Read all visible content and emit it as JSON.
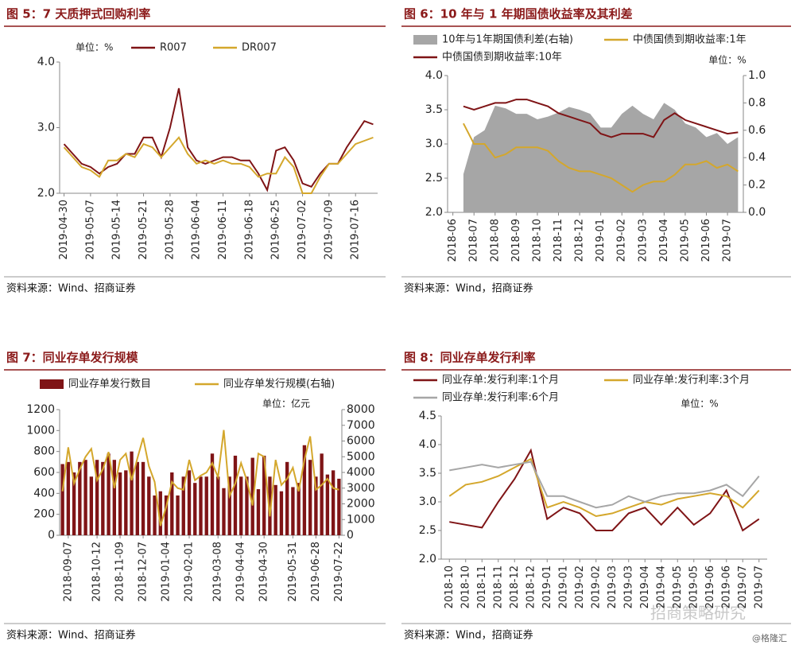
{
  "chart_data": [
    {
      "type": "line",
      "title": "图 5：7 天质押式回购利率",
      "unit": "单位：%",
      "source": "资料来源：Wind、招商证券",
      "categories": [
        "2019-04-30",
        null,
        null,
        "2019-05-07",
        null,
        null,
        "2019-05-14",
        null,
        null,
        "2019-05-21",
        null,
        null,
        "2019-05-28",
        null,
        null,
        "2019-06-04",
        null,
        null,
        "2019-06-11",
        null,
        null,
        "2019-06-18",
        null,
        null,
        "2019-06-25",
        null,
        null,
        "2019-07-02",
        null,
        null,
        "2019-07-09",
        null,
        null,
        "2019-07-16",
        null,
        null
      ],
      "ylim": [
        2.0,
        4.0
      ],
      "yticks": [
        {
          "value": 2,
          "label": "2.0"
        },
        {
          "value": 3,
          "label": "3.0"
        },
        {
          "value": 4,
          "label": "4.0"
        }
      ],
      "series": [
        {
          "name": "R007",
          "color": "#7f1416",
          "values": [
            2.75,
            2.6,
            2.45,
            2.4,
            2.3,
            2.4,
            2.45,
            2.6,
            2.6,
            2.85,
            2.85,
            2.55,
            3.0,
            3.6,
            2.7,
            2.5,
            2.45,
            2.5,
            2.55,
            2.55,
            2.5,
            2.5,
            2.3,
            2.05,
            2.65,
            2.7,
            2.5,
            2.15,
            2.1,
            2.3,
            2.45,
            2.45,
            2.7,
            2.9,
            3.1,
            3.05
          ]
        },
        {
          "name": "DR007",
          "color": "#d4a72c",
          "values": [
            2.7,
            2.55,
            2.4,
            2.35,
            2.25,
            2.5,
            2.5,
            2.6,
            2.55,
            2.75,
            2.7,
            2.55,
            2.7,
            2.85,
            2.6,
            2.45,
            2.5,
            2.45,
            2.5,
            2.45,
            2.45,
            2.4,
            2.25,
            2.3,
            2.3,
            2.55,
            2.4,
            2.0,
            2.0,
            2.25,
            2.45,
            2.45,
            2.6,
            2.75,
            2.8,
            2.85
          ]
        }
      ]
    },
    {
      "type": "line",
      "title": "图 6：10 年与 1 年期国债收益率及其利差",
      "unit": "单位：%",
      "source": "资料来源：Wind，招商证券",
      "categories": [
        "2018-06",
        null,
        "2018-07",
        null,
        "2018-08",
        null,
        "2018-09",
        null,
        "2018-10",
        null,
        "2018-11",
        null,
        "2018-12",
        null,
        "2019-01",
        null,
        "2019-02",
        null,
        "2019-03",
        null,
        "2019-04",
        null,
        "2019-05",
        null,
        "2019-06",
        null,
        "2019-07",
        null
      ],
      "ylim": [
        2.0,
        4.0
      ],
      "yticks": [
        {
          "value": 2,
          "label": "2.0"
        },
        2.5,
        {
          "value": 3,
          "label": "3.0"
        },
        3.5,
        {
          "value": 4,
          "label": "4.0"
        }
      ],
      "y2lim": [
        0,
        1.0
      ],
      "y2ticks": [
        {
          "value": 0,
          "label": "0.0"
        },
        0.2,
        0.4,
        0.6,
        0.8,
        {
          "value": 1,
          "label": "1.0"
        }
      ],
      "series": [
        {
          "name": "10年与1年期国债利差(右轴)",
          "color": "#a6a6a6",
          "style": "area",
          "axis": "y2",
          "values": [
            null,
            0.28,
            0.55,
            0.6,
            0.78,
            0.76,
            0.72,
            0.72,
            0.68,
            0.7,
            0.73,
            0.77,
            0.75,
            0.72,
            0.62,
            0.62,
            0.72,
            0.78,
            0.72,
            0.68,
            0.8,
            0.75,
            0.65,
            0.62,
            0.55,
            0.58,
            0.5,
            0.55
          ]
        },
        {
          "name": "中债国债到期收益率:1年",
          "color": "#d4a72c",
          "values": [
            null,
            3.3,
            3.0,
            3.0,
            2.8,
            2.85,
            2.95,
            2.95,
            2.95,
            2.9,
            2.75,
            2.65,
            2.6,
            2.6,
            2.55,
            2.5,
            2.4,
            2.3,
            2.4,
            2.45,
            2.45,
            2.55,
            2.7,
            2.7,
            2.75,
            2.65,
            2.7,
            2.6
          ]
        },
        {
          "name": "中债国债到期收益率:10年",
          "color": "#7f1416",
          "values": [
            null,
            3.55,
            3.5,
            3.55,
            3.6,
            3.6,
            3.65,
            3.65,
            3.6,
            3.55,
            3.45,
            3.4,
            3.35,
            3.3,
            3.15,
            3.1,
            3.15,
            3.15,
            3.15,
            3.1,
            3.35,
            3.45,
            3.35,
            3.3,
            3.25,
            3.2,
            3.15,
            3.17
          ]
        }
      ]
    },
    {
      "type": "line",
      "title": "图 7：同业存单发行规模",
      "unit": "单位：亿元",
      "source": "资料来源：Wind、招商证券",
      "categories": [
        null,
        "2018-09-07",
        null,
        null,
        null,
        null,
        "2018-10-12",
        null,
        null,
        null,
        "2018-11-09",
        null,
        null,
        null,
        "2018-12-07",
        null,
        null,
        null,
        "2019-01-04",
        null,
        null,
        null,
        "2019-02-01",
        null,
        null,
        null,
        null,
        "2019-03-08",
        null,
        null,
        null,
        "2019-04-04",
        null,
        null,
        null,
        "2019-04-30",
        null,
        null,
        null,
        null,
        "2019-05-31",
        null,
        null,
        null,
        "2019-06-28",
        null,
        null,
        null,
        "2019-07-22"
      ],
      "ylim": [
        0,
        1200
      ],
      "yticks": [
        0,
        200,
        400,
        600,
        800,
        1000,
        1200
      ],
      "y2lim": [
        0,
        8000
      ],
      "y2ticks": [
        0,
        1000,
        2000,
        3000,
        4000,
        5000,
        6000,
        7000,
        8000
      ],
      "series": [
        {
          "name": "同业存单发行数目",
          "color": "#7f1416",
          "style": "bar",
          "values": [
            680,
            700,
            600,
            700,
            720,
            560,
            720,
            700,
            780,
            720,
            600,
            620,
            800,
            700,
            700,
            560,
            380,
            420,
            380,
            600,
            380,
            560,
            620,
            500,
            560,
            560,
            780,
            560,
            450,
            560,
            760,
            560,
            560,
            740,
            440,
            760,
            560,
            480,
            420,
            700,
            460,
            500,
            860,
            720,
            560,
            780,
            580,
            620,
            540
          ]
        },
        {
          "name": "同业存单发行规模(右轴)",
          "color": "#d4a72c",
          "axis": "y2",
          "values": [
            2800,
            5600,
            3300,
            4200,
            5000,
            5500,
            3500,
            4200,
            5300,
            3000,
            4800,
            5200,
            3500,
            4900,
            6200,
            4400,
            3400,
            600,
            1800,
            3400,
            3000,
            2900,
            4800,
            3500,
            3800,
            4000,
            4600,
            3700,
            6700,
            2500,
            3300,
            4600,
            3500,
            1900,
            5200,
            5000,
            1200,
            4800,
            3200,
            3600,
            4300,
            2800,
            4800,
            6300,
            2900,
            3200,
            3600,
            3000,
            2900
          ]
        }
      ]
    },
    {
      "type": "line",
      "title": "图 8：同业存单发行利率",
      "unit": "单位：%",
      "source": "资料来源：Wind，招商证券",
      "categories": [
        "2018-10",
        "2018-10",
        "2018-11",
        "2018-11",
        "2018-12",
        "2018-12",
        "2019-01",
        "2019-01",
        "2019-02",
        "2019-02",
        "2019-03",
        "2019-03",
        "2019-04",
        "2019-04",
        "2019-05",
        "2019-05",
        "2019-06",
        "2019-06",
        "2019-07",
        "2019-07"
      ],
      "ylim": [
        2.0,
        4.5
      ],
      "yticks": [
        {
          "value": 2,
          "label": "2.0"
        },
        2.5,
        {
          "value": 3,
          "label": "3.0"
        },
        3.5,
        {
          "value": 4,
          "label": "4.0"
        },
        4.5
      ],
      "series": [
        {
          "name": "同业存单:发行利率:1个月",
          "color": "#7f1416",
          "values": [
            2.65,
            2.6,
            2.55,
            3.0,
            3.4,
            3.9,
            2.7,
            2.9,
            2.8,
            2.5,
            2.5,
            2.8,
            2.9,
            2.6,
            2.9,
            2.6,
            2.8,
            3.2,
            2.5,
            2.7
          ]
        },
        {
          "name": "同业存单:发行利率:3个月",
          "color": "#d4a72c",
          "values": [
            3.1,
            3.3,
            3.35,
            3.45,
            3.6,
            3.75,
            2.9,
            3.0,
            2.9,
            2.75,
            2.8,
            2.9,
            3.0,
            2.95,
            3.05,
            3.1,
            3.15,
            3.1,
            2.9,
            3.2
          ]
        },
        {
          "name": "同业存单:发行利率:6个月",
          "color": "#a6a6a6",
          "values": [
            3.55,
            3.6,
            3.65,
            3.6,
            3.65,
            3.7,
            3.1,
            3.1,
            3.0,
            2.9,
            2.95,
            3.1,
            3.0,
            3.1,
            3.15,
            3.15,
            3.2,
            3.3,
            3.1,
            3.45
          ]
        }
      ]
    }
  ],
  "watermark": {
    "text": "招商策略研究",
    "credit": "@格隆汇"
  }
}
